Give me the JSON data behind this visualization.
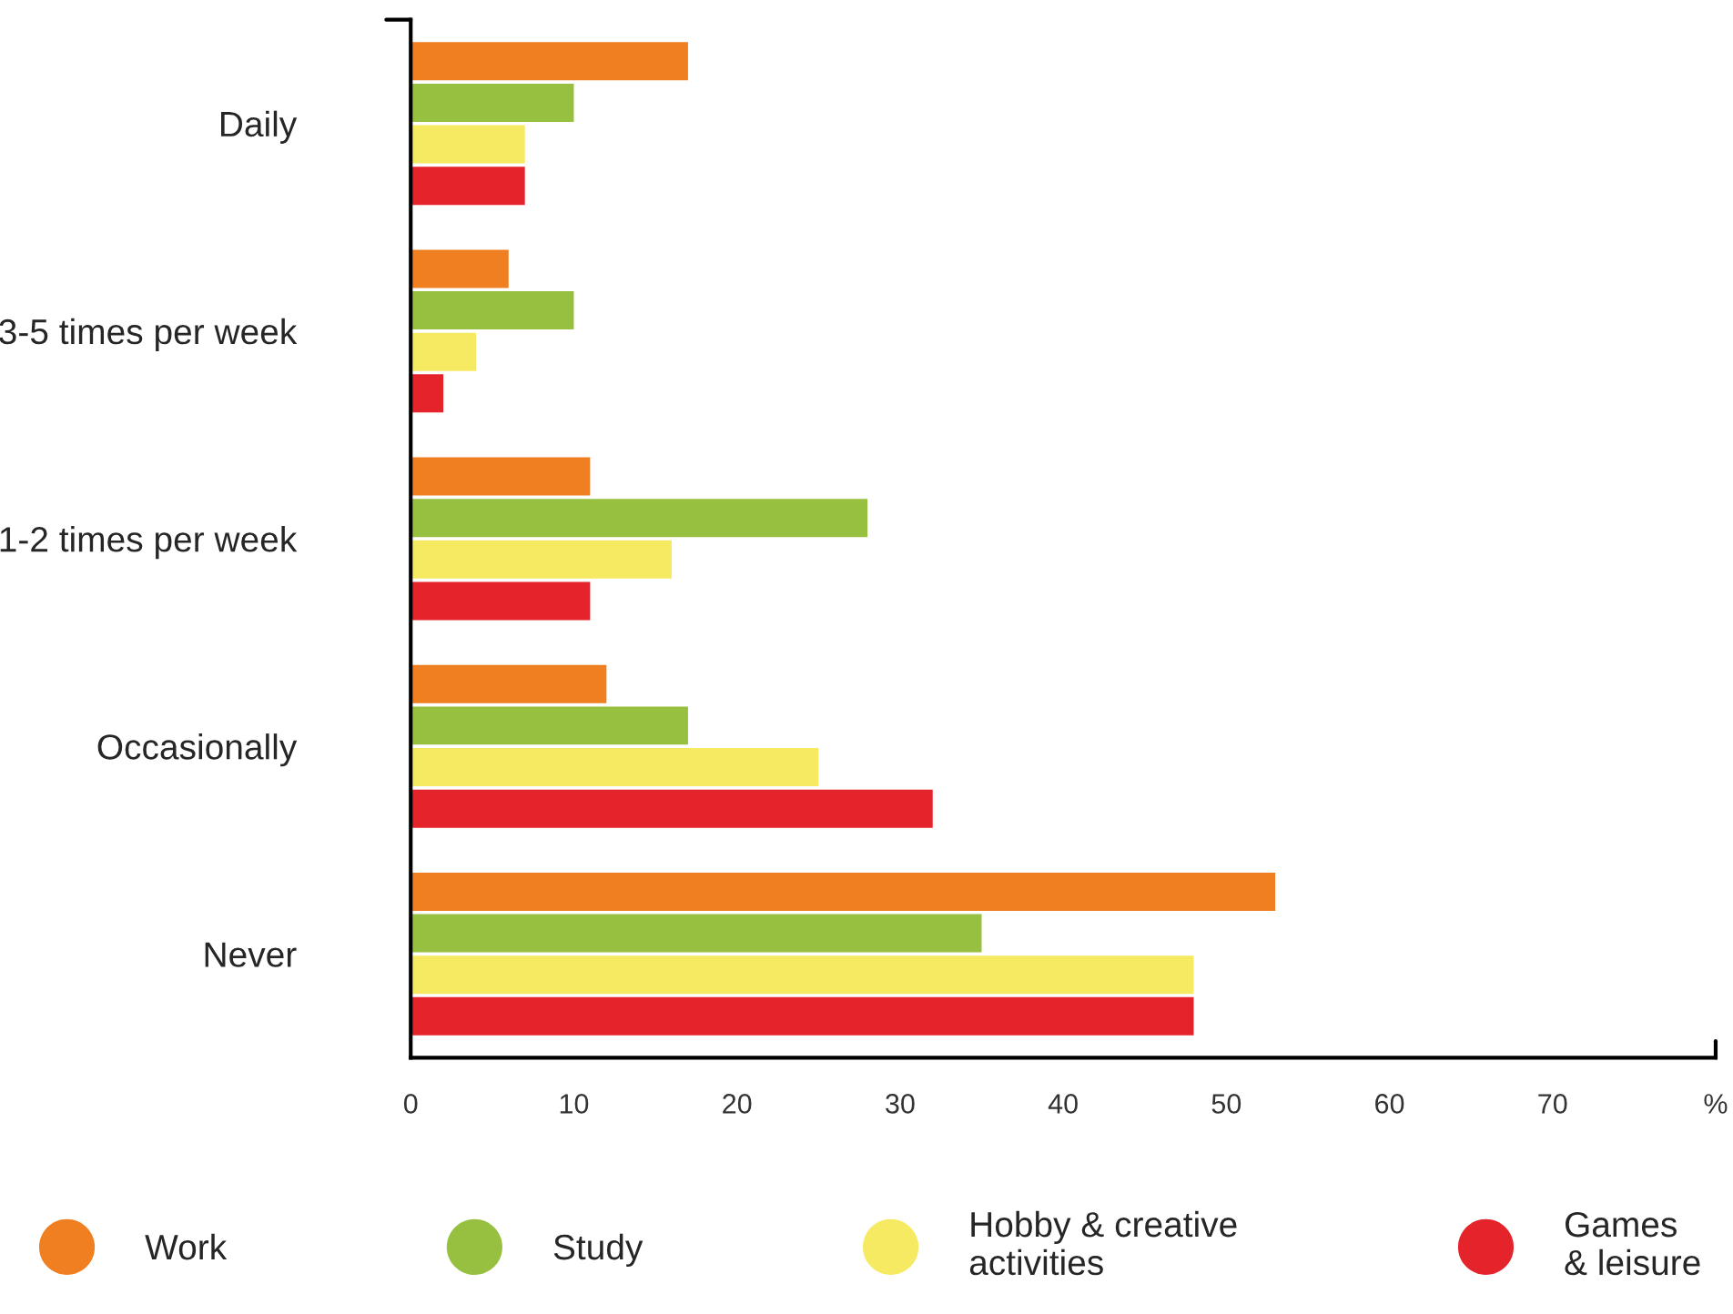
{
  "chart_data": {
    "type": "bar",
    "orientation": "horizontal",
    "categories": [
      "Daily",
      "3-5 times per week",
      "1-2 times per week",
      "Occasionally",
      "Never"
    ],
    "series": [
      {
        "name": "Work",
        "color": "#f07f22",
        "values": [
          17,
          6,
          11,
          12,
          53
        ]
      },
      {
        "name": "Study",
        "color": "#97c041",
        "values": [
          10,
          10,
          28,
          17,
          35
        ]
      },
      {
        "name": "Hobby & creative\nactivities",
        "color": "#f7ea63",
        "values": [
          7,
          4,
          16,
          25,
          48
        ]
      },
      {
        "name": "Games\n& leisure",
        "color": "#e5232b",
        "values": [
          7,
          2,
          11,
          32,
          48
        ]
      }
    ],
    "xlim": [
      0,
      80
    ],
    "xticks": [
      0,
      10,
      20,
      30,
      40,
      50,
      60,
      70,
      {
        "value": 80,
        "label": "%"
      }
    ],
    "grid": false,
    "legend": "bottom",
    "marker": "circle"
  }
}
